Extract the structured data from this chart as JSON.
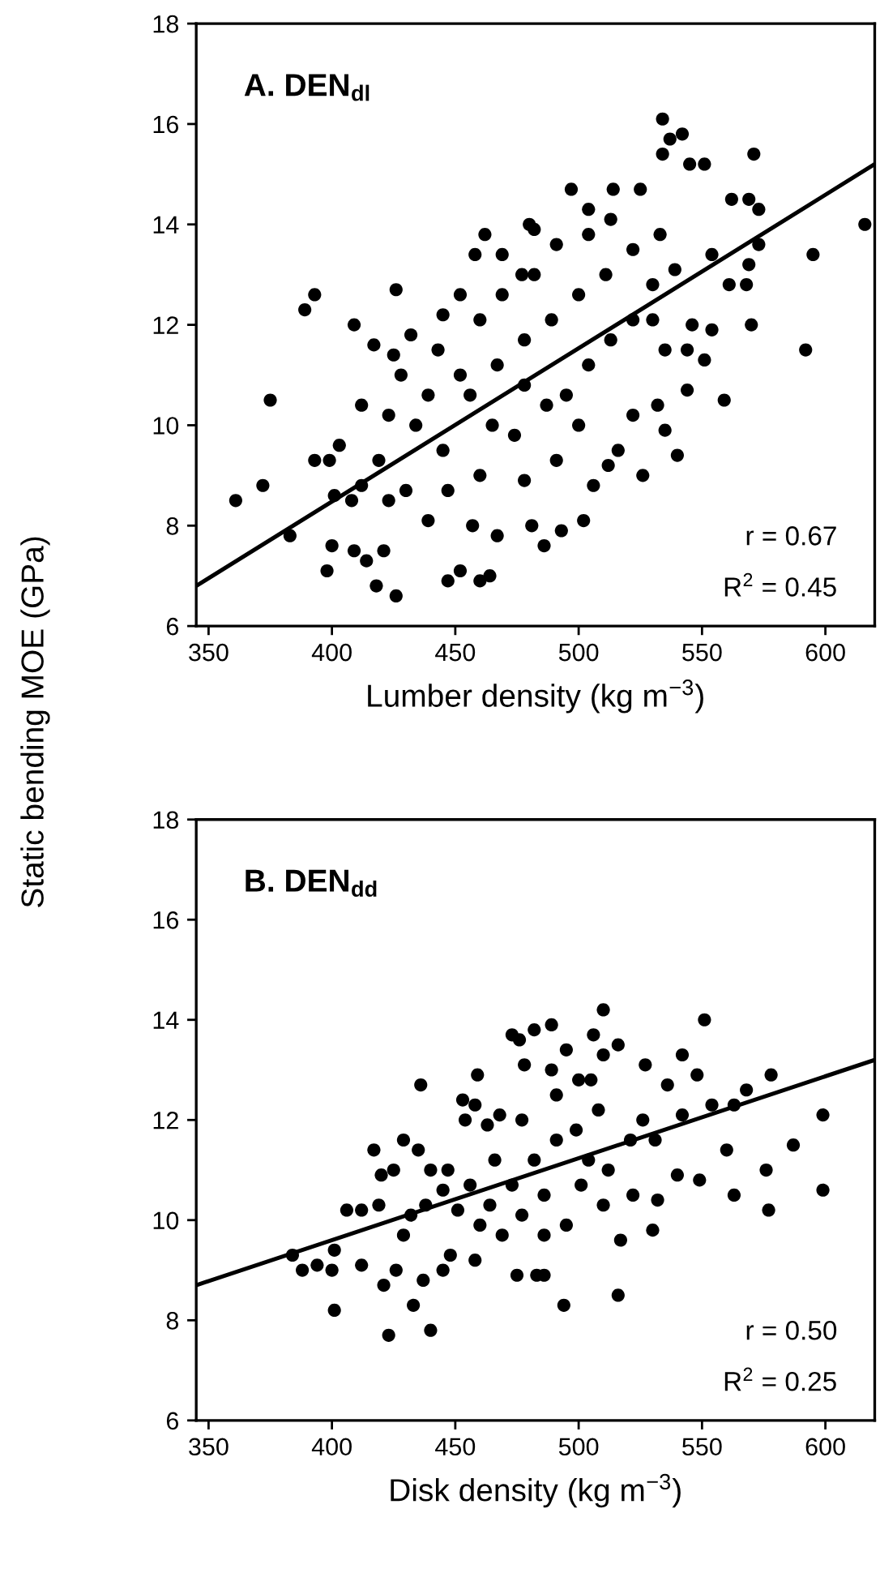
{
  "chart_data": [
    {
      "type": "scatter",
      "title": "A. DEN$_{dl}$",
      "xlabel": "Lumber density (kg m$^{−3}$)",
      "ylabel": "Static bending MOE (GPa)",
      "xlim": [
        345,
        620
      ],
      "ylim": [
        6,
        18
      ],
      "xticks": [
        350,
        400,
        450,
        500,
        550,
        600
      ],
      "yticks": [
        6,
        8,
        10,
        12,
        14,
        16,
        18
      ],
      "grid": false,
      "legend": false,
      "annotations": [
        "r = 0.67",
        "R$^{2}$ = 0.45"
      ],
      "series": [
        {
          "marker": "circle",
          "color": "#000000",
          "x": [
            361,
            372,
            375,
            389,
            393,
            409,
            417,
            426,
            383,
            393,
            399,
            403,
            401,
            398,
            425,
            432,
            445,
            458,
            462,
            469,
            477,
            480,
            482,
            497,
            504,
            514,
            525,
            534,
            537,
            534,
            542,
            545,
            551,
            571,
            562,
            569,
            573,
            573,
            569,
            568,
            570,
            595,
            616,
            592,
            559,
            551,
            540,
            532,
            526,
            506,
            502,
            493,
            486,
            481,
            467,
            457,
            452,
            464,
            447,
            421,
            414,
            409,
            400,
            516,
            512,
            522,
            544,
            554,
            546,
            561,
            554,
            456,
            467,
            478,
            489,
            500,
            511,
            522,
            533,
            445,
            434,
            423,
            412,
            430,
            439,
            447,
            460,
            474,
            487,
            495,
            504,
            513,
            522,
            530,
            539,
            460,
            452,
            469,
            482,
            491,
            504,
            513,
            478,
            465,
            452,
            443,
            439,
            428,
            419,
            412,
            408,
            423,
            478,
            491,
            500,
            535,
            530,
            544,
            535,
            418,
            426,
            460
          ],
          "values": [
            8.5,
            8.8,
            10.5,
            12.3,
            12.6,
            12.0,
            11.6,
            12.7,
            7.8,
            9.3,
            9.3,
            9.6,
            8.6,
            7.1,
            11.4,
            11.8,
            12.2,
            13.4,
            13.8,
            13.4,
            13.0,
            14.0,
            13.9,
            14.7,
            14.3,
            14.7,
            14.7,
            16.1,
            15.7,
            15.4,
            15.8,
            15.2,
            15.2,
            15.4,
            14.5,
            14.5,
            14.3,
            13.6,
            13.2,
            12.8,
            12.0,
            13.4,
            14.0,
            11.5,
            10.5,
            11.3,
            9.4,
            10.4,
            9.0,
            8.8,
            8.1,
            7.9,
            7.6,
            8.0,
            7.8,
            8.0,
            7.1,
            7.0,
            6.9,
            7.5,
            7.3,
            7.5,
            7.6,
            9.5,
            9.2,
            10.2,
            10.7,
            11.9,
            12.0,
            12.8,
            13.4,
            10.6,
            11.2,
            11.7,
            12.1,
            12.6,
            13.0,
            13.5,
            13.8,
            9.5,
            10.0,
            10.2,
            10.4,
            8.7,
            8.1,
            8.7,
            9.0,
            9.8,
            10.4,
            10.6,
            11.2,
            11.7,
            12.1,
            12.8,
            13.1,
            12.1,
            12.6,
            12.6,
            13.0,
            13.6,
            13.8,
            14.1,
            10.8,
            10.0,
            11.0,
            11.5,
            10.6,
            11.0,
            9.3,
            8.8,
            8.5,
            8.5,
            8.9,
            9.3,
            10.0,
            11.5,
            12.1,
            11.5,
            9.9,
            6.8,
            6.6,
            6.9
          ]
        },
        {
          "type": "line",
          "color": "#000000",
          "x": [
            345,
            620
          ],
          "values": [
            6.8,
            15.2
          ]
        }
      ]
    },
    {
      "type": "scatter",
      "title": "B. DEN$_{dd}$",
      "xlabel": "Disk density (kg m$^{−3}$)",
      "xlim": [
        345,
        620
      ],
      "ylim": [
        6,
        18
      ],
      "xticks": [
        350,
        400,
        450,
        500,
        550,
        600
      ],
      "yticks": [
        6,
        8,
        10,
        12,
        14,
        16,
        18
      ],
      "grid": false,
      "legend": false,
      "annotations": [
        "r = 0.50",
        "R$^{2}$ = 0.25"
      ],
      "series": [
        {
          "marker": "circle",
          "color": "#000000",
          "x": [
            384,
            388,
            394,
            400,
            401,
            401,
            406,
            412,
            412,
            417,
            419,
            421,
            420,
            423,
            425,
            426,
            429,
            432,
            433,
            435,
            436,
            437,
            440,
            440,
            445,
            445,
            448,
            453,
            454,
            459,
            458,
            458,
            463,
            468,
            473,
            476,
            475,
            478,
            482,
            483,
            486,
            489,
            489,
            494,
            495,
            500,
            505,
            510,
            506,
            510,
            516,
            516,
            517,
            522,
            527,
            526,
            530,
            532,
            531,
            536,
            540,
            542,
            542,
            548,
            549,
            551,
            554,
            560,
            563,
            563,
            568,
            576,
            577,
            578,
            587,
            599,
            599,
            456,
            464,
            473,
            482,
            491,
            499,
            508,
            477,
            486,
            495,
            466,
            460,
            447,
            438,
            429,
            451,
            477,
            469,
            486,
            501,
            510,
            512,
            521,
            504,
            491
          ],
          "values": [
            9.3,
            9.0,
            9.1,
            9.0,
            9.4,
            8.2,
            10.2,
            10.2,
            9.1,
            11.4,
            10.3,
            8.7,
            10.9,
            7.7,
            11.0,
            9.0,
            11.6,
            10.1,
            8.3,
            11.4,
            12.7,
            8.8,
            7.8,
            11.0,
            9.0,
            10.6,
            9.3,
            12.4,
            12.0,
            12.9,
            12.3,
            9.2,
            11.9,
            12.1,
            13.7,
            13.6,
            8.9,
            13.1,
            13.8,
            8.9,
            8.9,
            13.9,
            13.0,
            8.3,
            13.4,
            12.8,
            12.8,
            14.2,
            13.7,
            13.3,
            13.5,
            8.5,
            9.6,
            10.5,
            13.1,
            12.0,
            9.8,
            10.4,
            11.6,
            12.7,
            10.9,
            12.1,
            13.3,
            12.9,
            10.8,
            14.0,
            12.3,
            11.4,
            10.5,
            12.3,
            12.6,
            11.0,
            10.2,
            12.9,
            11.5,
            12.1,
            10.6,
            10.7,
            10.3,
            10.7,
            11.2,
            11.6,
            11.8,
            12.2,
            10.1,
            10.5,
            9.9,
            11.2,
            9.9,
            11.0,
            10.3,
            9.7,
            10.2,
            12.0,
            9.7,
            9.7,
            10.7,
            10.3,
            11.0,
            11.6,
            11.2,
            12.5
          ]
        },
        {
          "type": "line",
          "color": "#000000",
          "x": [
            345,
            620
          ],
          "values": [
            8.7,
            13.2
          ]
        }
      ]
    }
  ]
}
